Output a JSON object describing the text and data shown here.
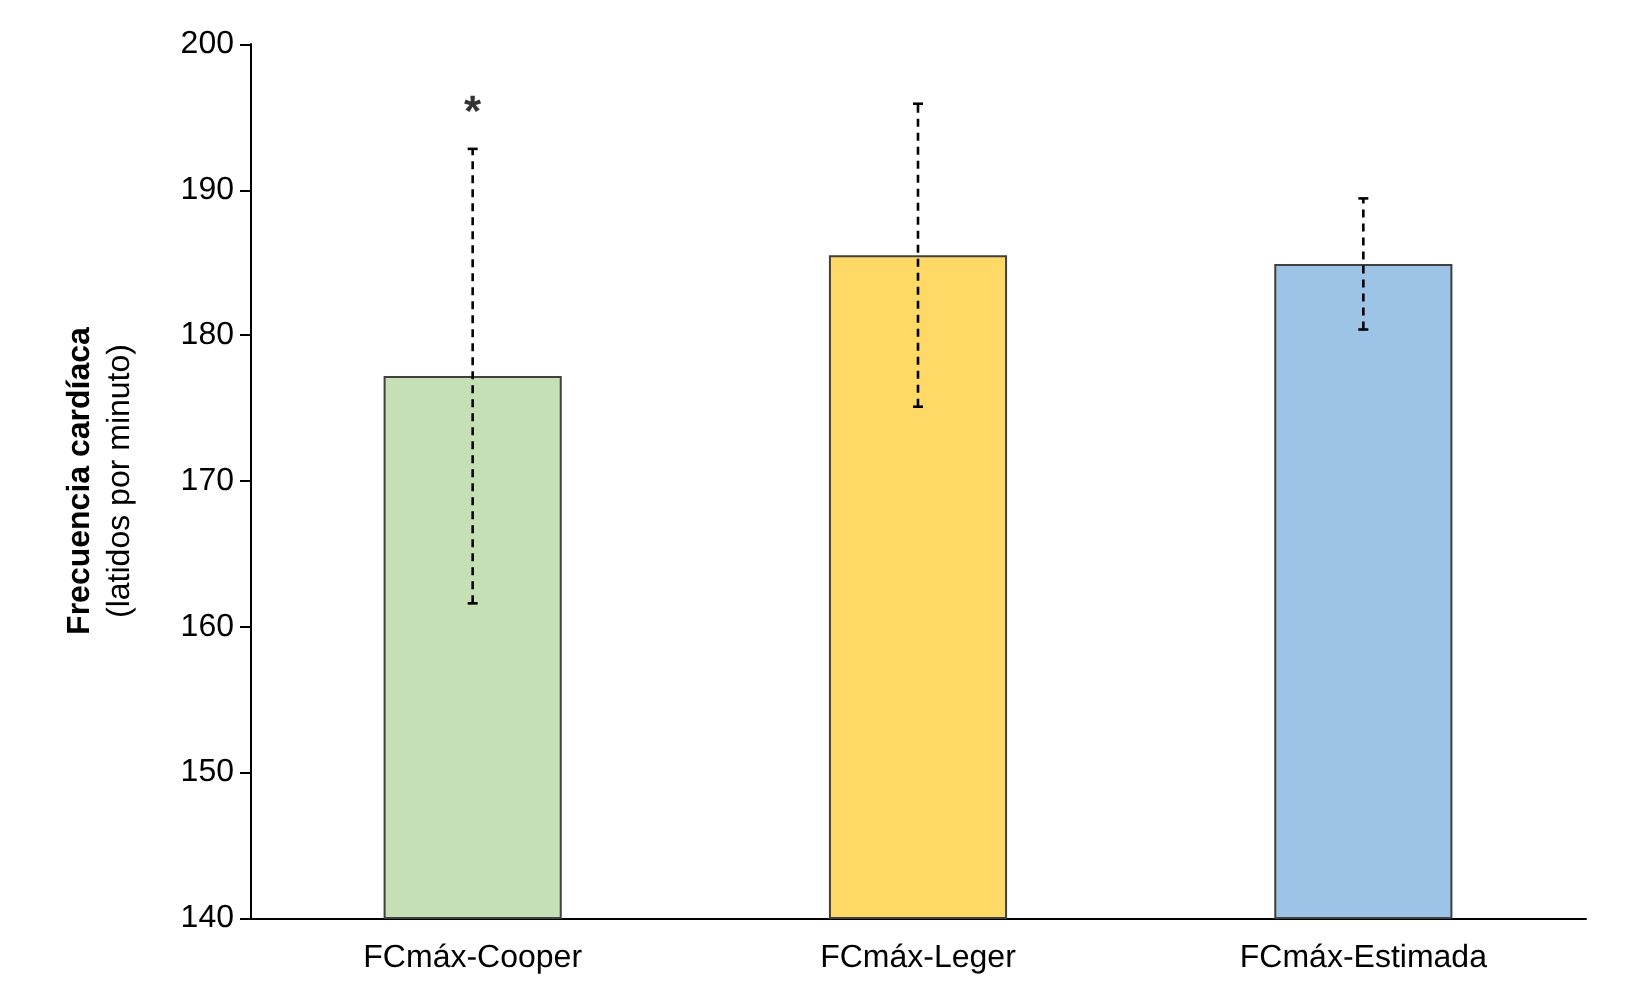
{
  "chart_data": {
    "type": "bar",
    "categories": [
      "FCmáx-Cooper",
      "FCmáx-Leger",
      "FCmáx-Estimada"
    ],
    "values": [
      177.2,
      185.5,
      184.9
    ],
    "colors": [
      "#c5e0b4",
      "#ffd966",
      "#9dc3e6"
    ],
    "errors": [
      15.6,
      10.4,
      4.5
    ],
    "ylabel": "Frecuencia cardíaca\n(latidos por minuto)",
    "ylim": [
      140,
      200
    ],
    "yticks": [
      140,
      150,
      160,
      170,
      180,
      190,
      200
    ],
    "annotations": [
      "*"
    ],
    "grid": false
  }
}
